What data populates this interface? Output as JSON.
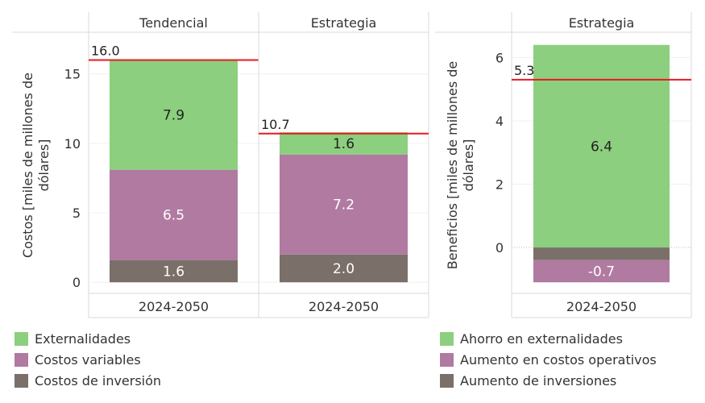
{
  "chart_data": [
    {
      "type": "bar",
      "stacked": true,
      "ylabel": "Costos [miles de millones de dólares]",
      "yticks": [
        0,
        5,
        10,
        15
      ],
      "ylim": [
        -0.8,
        18
      ],
      "panels": [
        {
          "header": "Tendencial",
          "category": "2024-2050",
          "segments": [
            {
              "series": "Costos de inversión",
              "value": 1.6,
              "label": "1.6"
            },
            {
              "series": "Costos variables",
              "value": 6.5,
              "label": "6.5"
            },
            {
              "series": "Externalidades",
              "value": 7.9,
              "label": "7.9"
            }
          ],
          "total_line": {
            "value": 16.0,
            "label": "16.0"
          }
        },
        {
          "header": "Estrategia",
          "category": "2024-2050",
          "segments": [
            {
              "series": "Costos de inversión",
              "value": 2.0,
              "label": "2.0"
            },
            {
              "series": "Costos variables",
              "value": 7.2,
              "label": "7.2"
            },
            {
              "series": "Externalidades",
              "value": 1.6,
              "label": "1.6"
            }
          ],
          "total_line": {
            "value": 10.7,
            "label": "10.7"
          }
        }
      ]
    },
    {
      "type": "bar",
      "stacked": true,
      "ylabel": "Beneficios [miles de millones de dólares]",
      "yticks": [
        0,
        2,
        4,
        6
      ],
      "ylim": [
        -1.45,
        6.8
      ],
      "panels": [
        {
          "header": "Estrategia",
          "category": "2024-2050",
          "segments": [
            {
              "series": "Aumento de inversiones",
              "value": -0.4,
              "label": ""
            },
            {
              "series": "Aumento en costos operativos",
              "value": -0.7,
              "label": "-0.7"
            },
            {
              "series": "Ahorro en externalidades",
              "value": 6.4,
              "label": "6.4"
            }
          ],
          "total_line": {
            "value": 5.3,
            "label": "5.3"
          }
        }
      ]
    }
  ],
  "legend_left": [
    {
      "label": "Externalidades",
      "color": "#8ccf7e"
    },
    {
      "label": "Costos variables",
      "color": "#b07aa1"
    },
    {
      "label": "Costos de inversión",
      "color": "#7a6f69"
    }
  ],
  "legend_right": [
    {
      "label": "Ahorro en externalidades",
      "color": "#8ccf7e"
    },
    {
      "label": "Aumento en costos operativos",
      "color": "#b07aa1"
    },
    {
      "label": "Aumento de inversiones",
      "color": "#7a6f69"
    }
  ],
  "colors": {
    "Externalidades": "#8ccf7e",
    "Costos variables": "#b07aa1",
    "Costos de inversión": "#7a6f69",
    "Ahorro en externalidades": "#8ccf7e",
    "Aumento en costos operativos": "#b07aa1",
    "Aumento de inversiones": "#7a6f69",
    "total_line": "#e8191e",
    "label_dark": "#222222",
    "label_light": "#ffffff"
  }
}
